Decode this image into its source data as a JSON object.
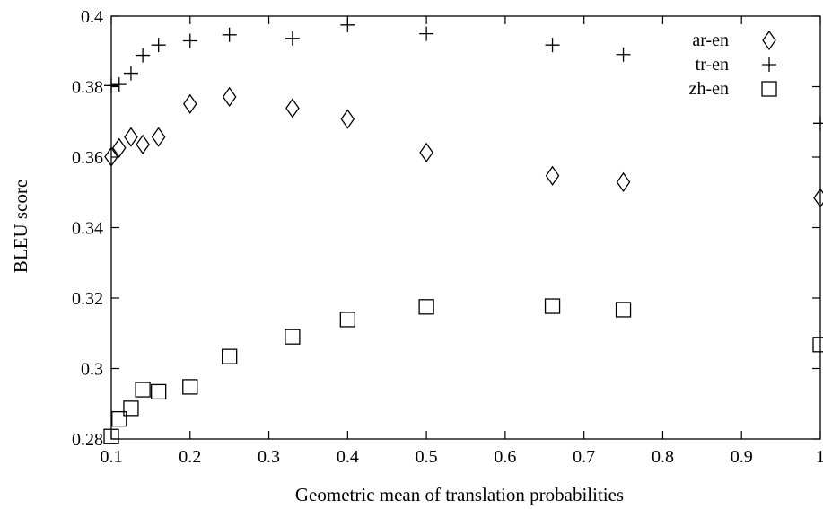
{
  "chart_data": {
    "type": "scatter",
    "xlabel": "Geometric mean of translation probabilities",
    "ylabel": "BLEU score",
    "xlim": [
      0.1,
      1.0
    ],
    "ylim": [
      0.28,
      0.4
    ],
    "x_ticks": [
      "0.1",
      "0.2",
      "0.3",
      "0.4",
      "0.5",
      "0.6",
      "0.7",
      "0.8",
      "0.9",
      "1"
    ],
    "y_ticks": [
      "0.28",
      "0.3",
      "0.32",
      "0.34",
      "0.36",
      "0.38",
      "0.4"
    ],
    "grid": false,
    "legend_position": "top-right",
    "series": [
      {
        "name": "ar-en",
        "marker": "diamond",
        "points": [
          [
            0.1,
            0.3601
          ],
          [
            0.11,
            0.3626
          ],
          [
            0.125,
            0.3657
          ],
          [
            0.14,
            0.3636
          ],
          [
            0.16,
            0.3657
          ],
          [
            0.2,
            0.3751
          ],
          [
            0.25,
            0.3771
          ],
          [
            0.33,
            0.3739
          ],
          [
            0.4,
            0.3708
          ],
          [
            0.5,
            0.3613
          ],
          [
            0.66,
            0.3547
          ],
          [
            0.75,
            0.3529
          ],
          [
            1.0,
            0.3484
          ]
        ]
      },
      {
        "name": "tr-en",
        "marker": "plus",
        "points": [
          [
            0.1,
            0.3803
          ],
          [
            0.11,
            0.3806
          ],
          [
            0.125,
            0.3838
          ],
          [
            0.14,
            0.3889
          ],
          [
            0.16,
            0.3918
          ],
          [
            0.2,
            0.393
          ],
          [
            0.25,
            0.3947
          ],
          [
            0.33,
            0.3937
          ],
          [
            0.4,
            0.3975
          ],
          [
            0.5,
            0.395
          ],
          [
            0.66,
            0.3918
          ],
          [
            0.75,
            0.3891
          ],
          [
            1.0,
            0.3696
          ]
        ]
      },
      {
        "name": "zh-en",
        "marker": "square",
        "points": [
          [
            0.1,
            0.2807
          ],
          [
            0.11,
            0.2857
          ],
          [
            0.125,
            0.2887
          ],
          [
            0.14,
            0.294
          ],
          [
            0.16,
            0.2934
          ],
          [
            0.2,
            0.2948
          ],
          [
            0.25,
            0.3034
          ],
          [
            0.33,
            0.309
          ],
          [
            0.4,
            0.3139
          ],
          [
            0.5,
            0.3175
          ],
          [
            0.66,
            0.3177
          ],
          [
            0.75,
            0.3167
          ],
          [
            1.0,
            0.3068
          ]
        ]
      }
    ]
  }
}
